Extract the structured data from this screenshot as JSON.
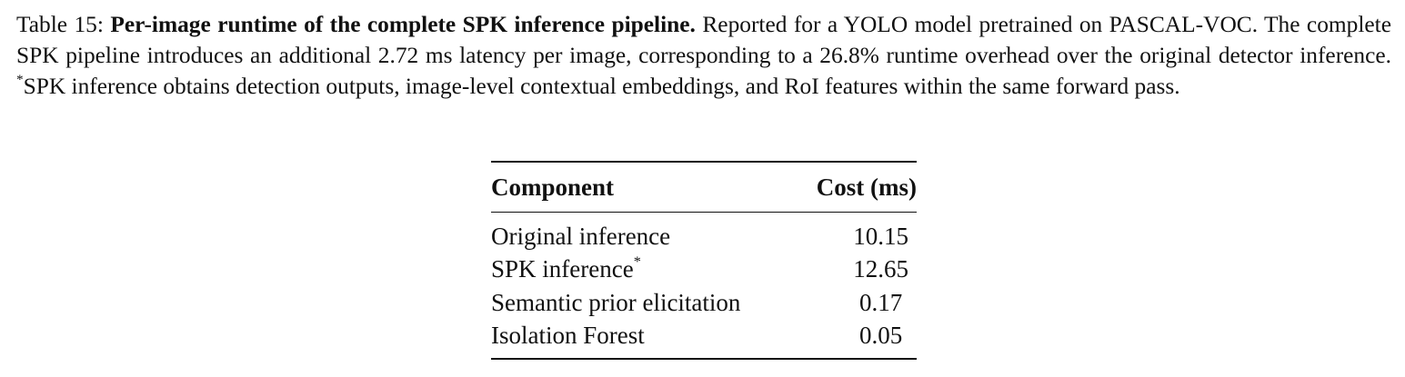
{
  "caption": {
    "label": "Table 15:",
    "title": "Per-image runtime of the complete SPK inference pipeline.",
    "text": "Reported for a YOLO model pretrained on PASCAL-VOC. The complete SPK pipeline introduces an additional 2.72 ms latency per image, corresponding to a 26.8% runtime overhead over the original detector inference.",
    "footnote_mark": "*",
    "footnote": "SPK inference obtains detection outputs, image-level contextual embeddings, and RoI features within the same forward pass."
  },
  "table": {
    "headers": [
      "Component",
      "Cost (ms)"
    ],
    "rows": [
      {
        "component": "Original inference",
        "cost": "10.15"
      },
      {
        "component": "SPK inference",
        "mark": "*",
        "cost": "12.65"
      },
      {
        "component": "Semantic prior elicitation",
        "cost": "0.17"
      },
      {
        "component": "Isolation Forest",
        "cost": "0.05"
      }
    ]
  }
}
